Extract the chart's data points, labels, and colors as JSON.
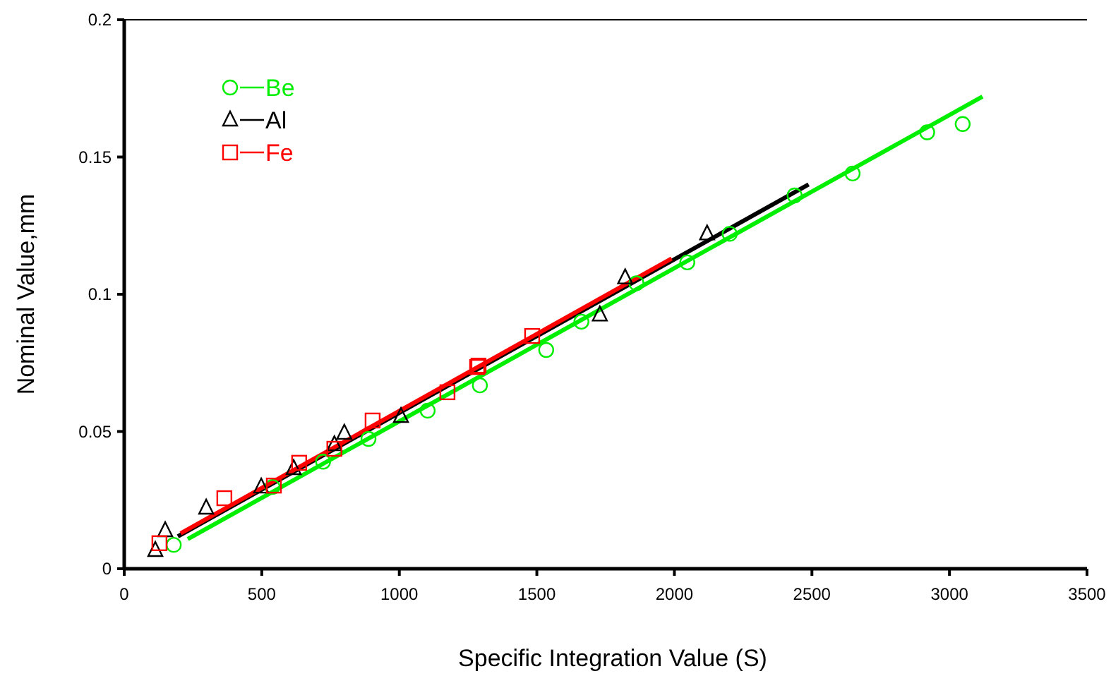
{
  "chart_data": {
    "type": "scatter",
    "xlabel": "Specific Integration Value (S)",
    "ylabel": "Nominal Value,mm",
    "xlim": [
      0,
      3500
    ],
    "ylim": [
      0,
      0.2
    ],
    "xticks": [
      0,
      500,
      1000,
      1500,
      2000,
      2500,
      3000,
      3500
    ],
    "yticks": [
      0,
      0.05,
      0.1,
      0.15,
      0.2
    ],
    "grid": false,
    "legend": "top left",
    "series": [
      {
        "name": "Be",
        "color": "#00ee00",
        "marker": "circle",
        "x": [
          180,
          539,
          723,
          888,
          1103,
          1293,
          1534,
          1662,
          1862,
          2047,
          2201,
          2437,
          2648,
          2919,
          3048
        ],
        "values": [
          0.0087,
          0.0298,
          0.039,
          0.0473,
          0.0576,
          0.0668,
          0.0797,
          0.09,
          0.104,
          0.1116,
          0.122,
          0.136,
          0.144,
          0.159,
          0.162
        ]
      },
      {
        "name": "Al",
        "color": "#000000",
        "marker": "triangle",
        "x": [
          113,
          149,
          298,
          498,
          616,
          764,
          800,
          1006,
          1729,
          1821,
          2119
        ],
        "values": [
          0.0067,
          0.0139,
          0.0221,
          0.0298,
          0.0365,
          0.0452,
          0.0494,
          0.0555,
          0.0925,
          0.106,
          0.122
        ]
      },
      {
        "name": "Fe",
        "color": "#ff0000",
        "marker": "square",
        "x": [
          128,
          364,
          544,
          636,
          764,
          903,
          1175,
          1283,
          1288,
          1483
        ],
        "values": [
          0.0093,
          0.0257,
          0.0303,
          0.0386,
          0.0437,
          0.054,
          0.0643,
          0.0735,
          0.074,
          0.0848
        ]
      },
      {
        "type": "line",
        "color": "#00ee00",
        "line_style": "solid",
        "x": [
          231,
          3120
        ],
        "values": [
          0.0108,
          0.172
        ]
      },
      {
        "type": "line",
        "color": "#000000",
        "line_style": "solid",
        "x": [
          195,
          2488
        ],
        "values": [
          0.0118,
          0.14
        ]
      },
      {
        "type": "line",
        "color": "#ff0000",
        "line_style": "solid",
        "x": [
          205,
          1990
        ],
        "values": [
          0.0129,
          0.113
        ]
      }
    ]
  }
}
